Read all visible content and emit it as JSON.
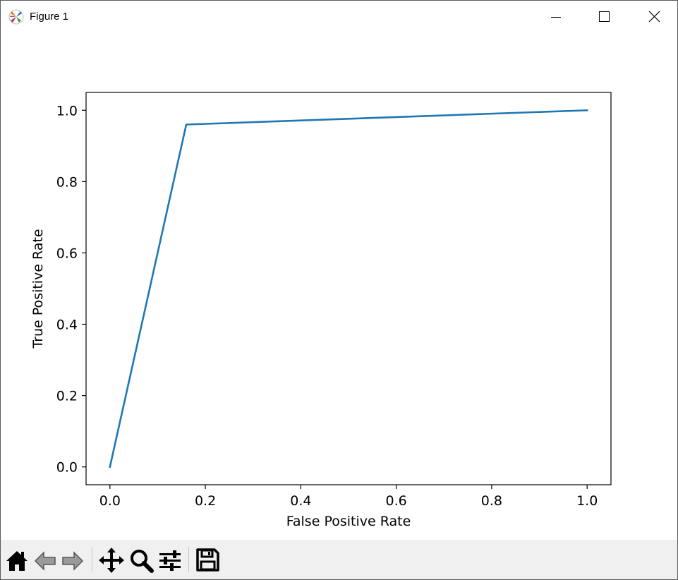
{
  "window": {
    "title": "Figure 1",
    "icons": {
      "app": "matplotlib-logo-icon",
      "minimize": "minimize-icon",
      "maximize": "maximize-icon",
      "close": "close-icon"
    }
  },
  "toolbar": {
    "tools": [
      {
        "name": "home-icon",
        "label": "Home"
      },
      {
        "name": "back-icon",
        "label": "Back"
      },
      {
        "name": "forward-icon",
        "label": "Forward"
      },
      {
        "name": "pan-icon",
        "label": "Pan"
      },
      {
        "name": "zoom-icon",
        "label": "Zoom"
      },
      {
        "name": "configure-subplots-icon",
        "label": "Configure subplots"
      },
      {
        "name": "save-icon",
        "label": "Save"
      }
    ]
  },
  "chart_data": {
    "type": "line",
    "title": "",
    "xlabel": "False Positive Rate",
    "ylabel": "True Positive Rate",
    "xlim": [
      -0.05,
      1.05
    ],
    "ylim": [
      -0.05,
      1.05
    ],
    "xticks": [
      0.0,
      0.2,
      0.4,
      0.6,
      0.8,
      1.0
    ],
    "xtick_labels": [
      "0.0",
      "0.2",
      "0.4",
      "0.6",
      "0.8",
      "1.0"
    ],
    "yticks": [
      0.0,
      0.2,
      0.4,
      0.6,
      0.8,
      1.0
    ],
    "ytick_labels": [
      "0.0",
      "0.2",
      "0.4",
      "0.6",
      "0.8",
      "1.0"
    ],
    "grid": false,
    "series": [
      {
        "x": [
          0.0,
          0.16,
          1.0
        ],
        "y": [
          0.0,
          0.96,
          1.0
        ],
        "color": "#1f77b4"
      }
    ]
  }
}
